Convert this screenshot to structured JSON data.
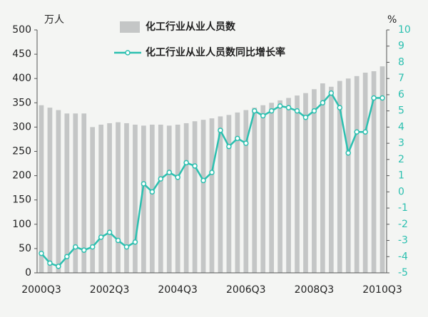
{
  "chart_data": {
    "type": "bar-line",
    "y_label": "万人",
    "y2_label": "%",
    "categories": [
      "2000Q3",
      null,
      null,
      null,
      null,
      null,
      null,
      null,
      "2002Q3",
      null,
      null,
      null,
      null,
      null,
      null,
      null,
      "2004Q3",
      null,
      null,
      null,
      null,
      null,
      null,
      null,
      "2006Q3",
      null,
      null,
      null,
      null,
      null,
      null,
      null,
      "2008Q3",
      null,
      null,
      null,
      null,
      null,
      null,
      null,
      "2010Q3"
    ],
    "series": [
      {
        "name": "化工行业从业人员数",
        "type": "bar",
        "color": "#c4c6c6",
        "values": [
          345,
          340,
          335,
          328,
          328,
          328,
          300,
          305,
          308,
          310,
          308,
          305,
          303,
          305,
          305,
          303,
          305,
          308,
          312,
          315,
          318,
          322,
          325,
          330,
          335,
          340,
          345,
          350,
          355,
          360,
          365,
          370,
          378,
          390,
          383,
          395,
          400,
          405,
          412,
          415,
          425
        ]
      },
      {
        "name": "化工行业从业人员数同比增长率",
        "type": "line",
        "axis": "y2",
        "color": "#2cc0b0",
        "values": [
          -3.8,
          -4.4,
          -4.6,
          -4.0,
          -3.4,
          -3.6,
          -3.4,
          -2.8,
          -2.5,
          -3.0,
          -3.4,
          -3.1,
          0.5,
          0.0,
          0.8,
          1.2,
          0.9,
          1.8,
          1.6,
          0.7,
          1.2,
          3.8,
          2.8,
          3.3,
          3.0,
          5.0,
          4.7,
          5.0,
          5.3,
          5.2,
          5.0,
          4.6,
          5.0,
          5.5,
          6.1,
          5.2,
          2.4,
          3.7,
          3.7,
          5.8,
          5.8
        ]
      }
    ],
    "ylim": [
      0,
      500
    ],
    "yticks": [
      0,
      50,
      100,
      150,
      200,
      250,
      300,
      350,
      400,
      450,
      500
    ],
    "y2lim": [
      -5,
      10
    ],
    "y2ticks": [
      -5,
      -4,
      -3,
      -2,
      -1,
      0,
      1,
      2,
      3,
      4,
      5,
      6,
      7,
      8,
      9,
      10
    ]
  }
}
